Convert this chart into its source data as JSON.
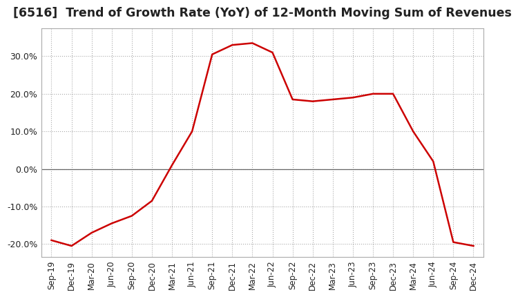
{
  "title": "[6516]  Trend of Growth Rate (YoY) of 12-Month Moving Sum of Revenues",
  "title_fontsize": 12.5,
  "line_color": "#cc0000",
  "background_color": "#ffffff",
  "grid_color": "#aaaaaa",
  "ylim": [
    -0.235,
    0.375
  ],
  "yticks": [
    -0.2,
    -0.1,
    0.0,
    0.1,
    0.2,
    0.3
  ],
  "ytick_labels": [
    "-20.0%",
    "-10.0%",
    "0.0%",
    "10.0%",
    "20.0%",
    "30.0%"
  ],
  "x_labels": [
    "Sep-19",
    "Dec-19",
    "Mar-20",
    "Jun-20",
    "Sep-20",
    "Dec-20",
    "Mar-21",
    "Jun-21",
    "Sep-21",
    "Dec-21",
    "Mar-22",
    "Jun-22",
    "Sep-22",
    "Dec-22",
    "Mar-23",
    "Jun-23",
    "Sep-23",
    "Dec-23",
    "Mar-24",
    "Jun-24",
    "Sep-24",
    "Dec-24"
  ],
  "values": [
    -0.19,
    -0.205,
    -0.17,
    -0.145,
    -0.125,
    -0.085,
    0.01,
    0.1,
    0.305,
    0.33,
    0.335,
    0.31,
    0.185,
    0.18,
    0.185,
    0.19,
    0.2,
    0.2,
    0.1,
    0.02,
    -0.195,
    -0.205
  ]
}
